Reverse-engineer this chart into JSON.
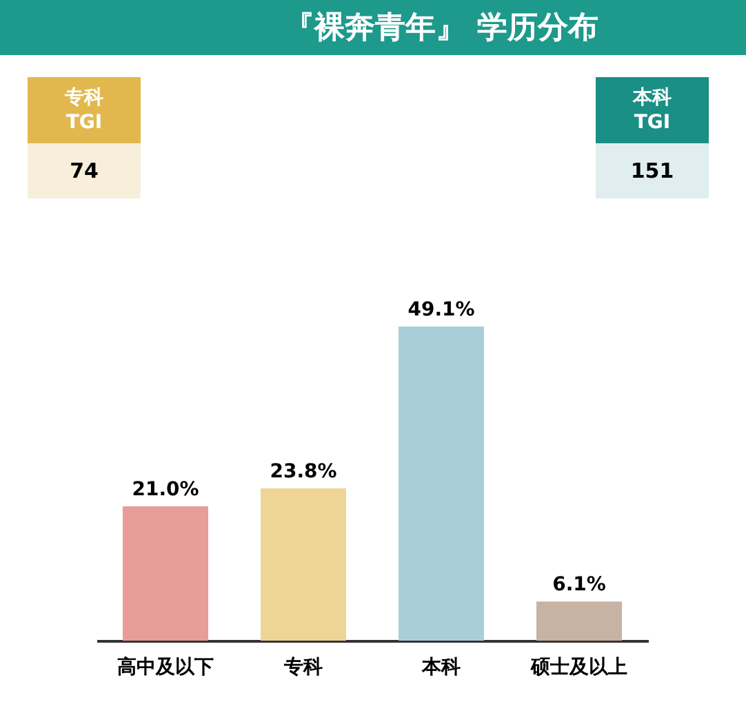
{
  "chart_data": {
    "type": "bar",
    "title": "『裸奔青年』 学历分布",
    "categories": [
      "高中及以下",
      "专科",
      "本科",
      "硕士及以上"
    ],
    "values": [
      21.0,
      23.8,
      49.1,
      6.1
    ],
    "colors": [
      "#e89d98",
      "#eed597",
      "#a8cfd8",
      "#c8b2a4"
    ],
    "value_labels": [
      "21.0%",
      "23.8%",
      "49.1%",
      "6.1%"
    ],
    "annotations": [
      "专科 TGI",
      "74",
      "本科 TGI",
      "151"
    ]
  }
}
